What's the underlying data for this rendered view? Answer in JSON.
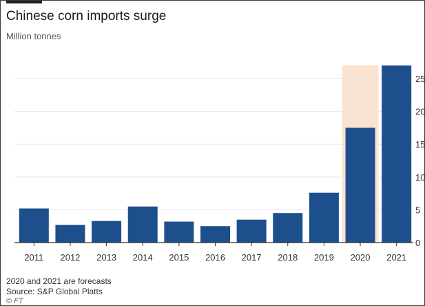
{
  "header": {
    "title": "Chinese corn imports surge",
    "subtitle": "Million tonnes"
  },
  "footer": {
    "note": "2020 and 2021 are forecasts",
    "source": "Source: S&P Global Platts",
    "credit": "© FT"
  },
  "colors": {
    "bar": "#1d4f8c",
    "forecast_highlight": "#fbe3d2",
    "grid": "#e6e6e6",
    "axis": "#333333"
  },
  "chart_data": {
    "type": "bar",
    "title": "Chinese corn imports surge",
    "subtitle": "Million tonnes",
    "xlabel": "",
    "ylabel": "",
    "categories": [
      "2011",
      "2012",
      "2013",
      "2014",
      "2015",
      "2016",
      "2017",
      "2018",
      "2019",
      "2020",
      "2021"
    ],
    "values": [
      5.2,
      2.7,
      3.3,
      5.5,
      3.2,
      2.5,
      3.5,
      4.5,
      7.6,
      17.5,
      27.0
    ],
    "highlighted_categories": [
      "2020"
    ],
    "yticks": [
      "0",
      "5",
      "10",
      "15",
      "20",
      "25"
    ],
    "ylim": [
      0,
      27
    ],
    "grid": true,
    "y_axis_side": "right"
  }
}
